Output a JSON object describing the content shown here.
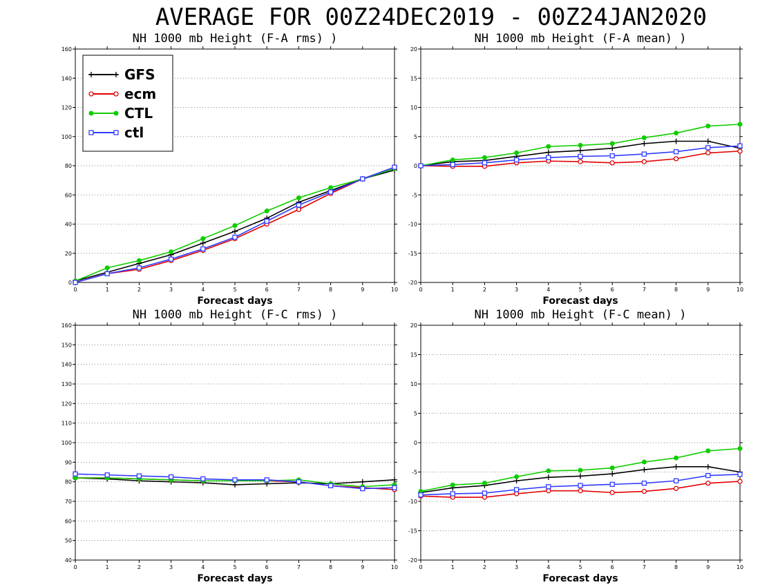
{
  "suptitle": "AVERAGE FOR 00Z24DEC2019 - 00Z24JAN2020",
  "colors": {
    "GFS": "#000000",
    "ecm": "#e00000",
    "CTL": "#11cc00",
    "ctl": "#2f3bff"
  },
  "legend": {
    "placement": "top-left of first panel",
    "entries": [
      {
        "name": "GFS",
        "marker": "plus"
      },
      {
        "name": "ecm",
        "marker": "circle"
      },
      {
        "name": "CTL",
        "marker": "dot"
      },
      {
        "name": "ctl",
        "marker": "square"
      }
    ]
  },
  "chart_data": [
    {
      "type": "line",
      "title": "NH 1000 mb Height (F-A rms) )",
      "xlabel": "Forecast days",
      "ylabel": "",
      "x": [
        0,
        1,
        2,
        3,
        4,
        5,
        6,
        7,
        8,
        9,
        10
      ],
      "xlim": [
        0,
        10
      ],
      "ylim": [
        0,
        160
      ],
      "yticks": [
        0,
        20,
        40,
        60,
        80,
        100,
        120,
        140,
        160
      ],
      "grid": true,
      "series": [
        {
          "name": "GFS",
          "values": [
            1,
            7,
            13,
            19,
            27,
            35,
            44,
            55,
            63,
            71,
            77
          ]
        },
        {
          "name": "ecm",
          "values": [
            0,
            6,
            9,
            15,
            22,
            30,
            40,
            50,
            61,
            71,
            79
          ]
        },
        {
          "name": "CTL",
          "values": [
            1,
            10,
            15,
            21,
            30,
            39,
            49,
            58,
            65,
            71,
            78
          ]
        },
        {
          "name": "ctl",
          "values": [
            0,
            6,
            10,
            16,
            23,
            31,
            42,
            53,
            62,
            71,
            79
          ]
        }
      ]
    },
    {
      "type": "line",
      "title": "NH 1000 mb Height (F-A mean) )",
      "xlabel": "Forecast days",
      "ylabel": "",
      "x": [
        0,
        1,
        2,
        3,
        4,
        5,
        6,
        7,
        8,
        9,
        10
      ],
      "xlim": [
        0,
        10
      ],
      "ylim": [
        -20,
        20
      ],
      "yticks": [
        -20,
        -15,
        -10,
        -5,
        0,
        5,
        10,
        15,
        20
      ],
      "grid": true,
      "series": [
        {
          "name": "GFS",
          "values": [
            0,
            0.7,
            0.9,
            1.6,
            2.3,
            2.6,
            3.0,
            3.8,
            4.2,
            4.2,
            3.0
          ]
        },
        {
          "name": "ecm",
          "values": [
            0,
            -0.1,
            -0.1,
            0.5,
            0.8,
            0.7,
            0.5,
            0.7,
            1.2,
            2.2,
            2.5
          ]
        },
        {
          "name": "CTL",
          "values": [
            0,
            1.0,
            1.4,
            2.2,
            3.3,
            3.5,
            3.8,
            4.8,
            5.6,
            6.8,
            7.1
          ]
        },
        {
          "name": "ctl",
          "values": [
            0,
            0.2,
            0.5,
            1.0,
            1.4,
            1.6,
            1.7,
            2.0,
            2.4,
            3.1,
            3.4
          ]
        }
      ]
    },
    {
      "type": "line",
      "title": "NH 1000 mb Height (F-C rms) )",
      "xlabel": "Forecast days",
      "ylabel": "",
      "x": [
        0,
        1,
        2,
        3,
        4,
        5,
        6,
        7,
        8,
        9,
        10
      ],
      "xlim": [
        0,
        10
      ],
      "ylim": [
        40,
        160
      ],
      "yticks": [
        40,
        50,
        60,
        70,
        80,
        90,
        100,
        110,
        120,
        130,
        140,
        150,
        160
      ],
      "grid": true,
      "series": [
        {
          "name": "GFS",
          "values": [
            82,
            81.5,
            80.5,
            80,
            79.5,
            78.5,
            79,
            79.5,
            79,
            80,
            81
          ]
        },
        {
          "name": "ecm",
          "values": [
            82,
            82,
            81.5,
            81,
            80.5,
            80.5,
            80.5,
            80,
            78,
            77,
            76
          ]
        },
        {
          "name": "CTL",
          "values": [
            82,
            82,
            81.5,
            81,
            80.5,
            80.5,
            80.5,
            81,
            79,
            77.5,
            78.5
          ]
        },
        {
          "name": "ctl",
          "values": [
            84,
            83.5,
            83,
            82.5,
            81.5,
            81,
            81,
            80,
            78,
            76.5,
            77
          ]
        }
      ]
    },
    {
      "type": "line",
      "title": "NH 1000 mb Height (F-C mean) )",
      "xlabel": "Forecast days",
      "ylabel": "",
      "x": [
        0,
        1,
        2,
        3,
        4,
        5,
        6,
        7,
        8,
        9,
        10
      ],
      "xlim": [
        0,
        10
      ],
      "ylim": [
        -20,
        20
      ],
      "yticks": [
        -20,
        -15,
        -10,
        -5,
        0,
        5,
        10,
        15,
        20
      ],
      "grid": true,
      "series": [
        {
          "name": "GFS",
          "values": [
            -8.5,
            -7.7,
            -7.3,
            -6.5,
            -5.9,
            -5.7,
            -5.3,
            -4.6,
            -4.1,
            -4.1,
            -5.0
          ]
        },
        {
          "name": "ecm",
          "values": [
            -9.1,
            -9.3,
            -9.3,
            -8.7,
            -8.2,
            -8.2,
            -8.5,
            -8.3,
            -7.8,
            -6.9,
            -6.6
          ]
        },
        {
          "name": "CTL",
          "values": [
            -8.3,
            -7.2,
            -6.9,
            -5.8,
            -4.8,
            -4.7,
            -4.3,
            -3.3,
            -2.6,
            -1.4,
            -1.0
          ]
        },
        {
          "name": "ctl",
          "values": [
            -8.9,
            -8.7,
            -8.6,
            -8.0,
            -7.5,
            -7.3,
            -7.1,
            -6.9,
            -6.5,
            -5.6,
            -5.4
          ]
        }
      ]
    }
  ]
}
